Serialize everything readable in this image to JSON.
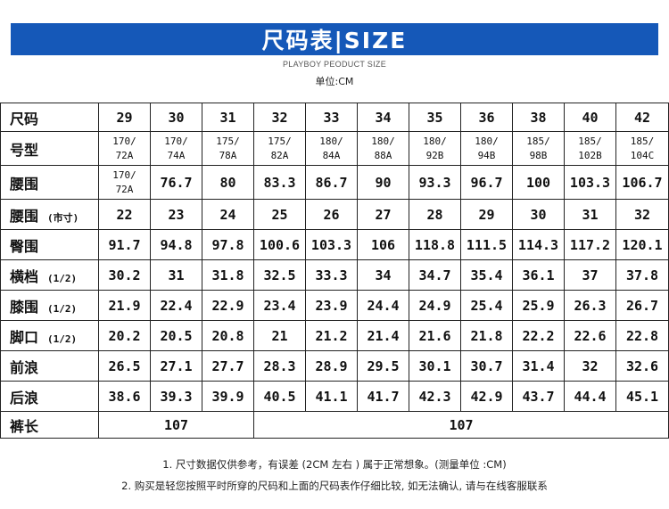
{
  "header": {
    "title": "尺码表|SIZE",
    "subtitle": "PLAYBOY PEODUCT SIZE",
    "unit": "单位:CM"
  },
  "sizes": [
    "29",
    "30",
    "31",
    "32",
    "33",
    "34",
    "35",
    "36",
    "38",
    "40",
    "42"
  ],
  "rows": {
    "size_label": "尺码",
    "model": {
      "label": "号型",
      "top": [
        "170/",
        "170/",
        "175/",
        "175/",
        "180/",
        "180/",
        "180/",
        "180/",
        "185/",
        "185/",
        "185/"
      ],
      "bottom": [
        "72A",
        "74A",
        "78A",
        "82A",
        "84A",
        "88A",
        "92B",
        "94B",
        "98B",
        "102B",
        "104C"
      ]
    },
    "waist": {
      "label": "腰围",
      "first_top": "170/",
      "first_bottom": "72A",
      "values": [
        "76.7",
        "80",
        "83.3",
        "86.7",
        "90",
        "93.3",
        "96.7",
        "100",
        "103.3",
        "106.7"
      ]
    },
    "waist_cun": {
      "label": "腰围",
      "note": "(市寸)",
      "values": [
        "22",
        "23",
        "24",
        "25",
        "26",
        "27",
        "28",
        "29",
        "30",
        "31",
        "32"
      ]
    },
    "hip": {
      "label": "臀围",
      "values": [
        "91.7",
        "94.8",
        "97.8",
        "100.6",
        "103.3",
        "106",
        "118.8",
        "111.5",
        "114.3",
        "117.2",
        "120.1"
      ]
    },
    "thigh": {
      "label": "横档",
      "note": "(1/2)",
      "values": [
        "30.2",
        "31",
        "31.8",
        "32.5",
        "33.3",
        "34",
        "34.7",
        "35.4",
        "36.1",
        "37",
        "37.8"
      ]
    },
    "knee": {
      "label": "膝围",
      "note": "(1/2)",
      "values": [
        "21.9",
        "22.4",
        "22.9",
        "23.4",
        "23.9",
        "24.4",
        "24.9",
        "25.4",
        "25.9",
        "26.3",
        "26.7"
      ]
    },
    "leg_opening": {
      "label": "脚口",
      "note": "(1/2)",
      "values": [
        "20.2",
        "20.5",
        "20.8",
        "21",
        "21.2",
        "21.4",
        "21.6",
        "21.8",
        "22.2",
        "22.6",
        "22.8"
      ]
    },
    "front_rise": {
      "label": "前浪",
      "values": [
        "26.5",
        "27.1",
        "27.7",
        "28.3",
        "28.9",
        "29.5",
        "30.1",
        "30.7",
        "31.4",
        "32",
        "32.6"
      ]
    },
    "back_rise": {
      "label": "后浪",
      "values": [
        "38.6",
        "39.3",
        "39.9",
        "40.5",
        "41.1",
        "41.7",
        "42.3",
        "42.9",
        "43.7",
        "44.4",
        "45.1"
      ]
    },
    "length": {
      "label": "裤长",
      "value_a": "107",
      "value_b": "107"
    }
  },
  "notes": [
    "1. 尺寸数据仅供参考，有误差 (2CM 左右 ) 属于正常想象。(测量单位 :CM)",
    "2. 购买是轻您按照平时所穿的尺码和上面的尺码表作仔细比较, 如无法确认, 请与在线客服联系"
  ]
}
